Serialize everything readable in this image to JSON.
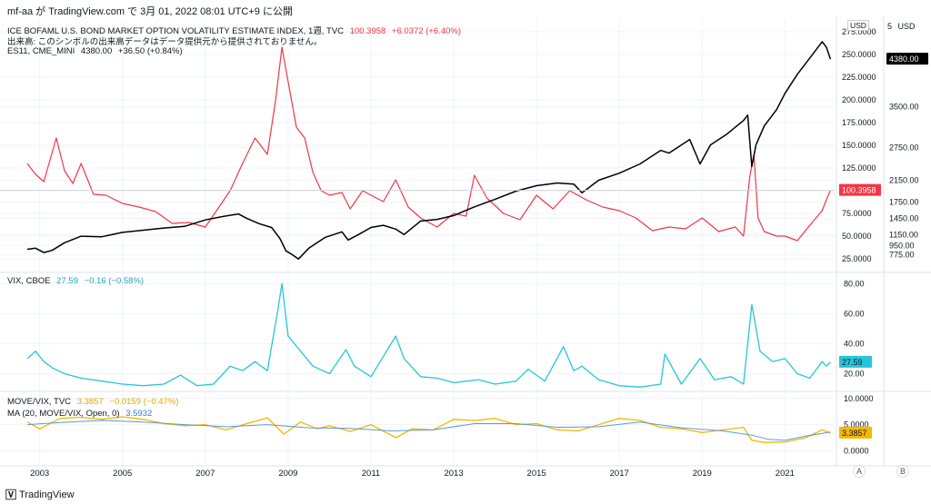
{
  "header": {
    "text": "mf-aa が TradingView.com で 3月 01, 2022 08:01 UTC+9 に公開"
  },
  "legends": {
    "move": {
      "label": "ICE BOFAML U.S. BOND MARKET OPTION VOLATILITY ESTIMATE INDEX, 1週, TVC",
      "value": "100.3958",
      "change": "+6.0372 (+6.40%)"
    },
    "note": "出来高: このシンボルの出来高データはデータ提供元から提供されておりません。",
    "es": {
      "label": "ES11, CME_MINI",
      "value": "4380.00",
      "change": "+36.50 (+0.84%)"
    },
    "vix": {
      "label": "VIX, CBOE",
      "value": "27.59",
      "change": "−0.16 (−0.58%)"
    },
    "ratio": {
      "label": "MOVE/VIX, TVC",
      "value": "3.3857",
      "change": "−0.0159 (−0.47%)"
    },
    "ma": {
      "label": "MA (20, MOVE/VIX, Open, 0)",
      "value": "3.5932"
    }
  },
  "axis_units": {
    "left": "USD",
    "right": "USD",
    "right_num": "5"
  },
  "corner_buttons": {
    "a": "A",
    "b": "B"
  },
  "brand": {
    "name": "TradingView"
  },
  "colors": {
    "move": "#f23645",
    "es": "#000000",
    "vix": "#26c6da",
    "ratio": "#f5b700",
    "ma": "#5b9bd5",
    "grid": "#f0f3fa"
  },
  "chart_data": [
    {
      "type": "line",
      "title": "ICE BOFAML U.S. BOND MARKET OPTION VOLATILITY ESTIMATE INDEX, 1週, TVC",
      "x_ticks": [
        "2003",
        "2005",
        "2007",
        "2009",
        "2011",
        "2013",
        "2015",
        "2017",
        "2019",
        "2021"
      ],
      "x_range": [
        2002.7,
        2022.2
      ],
      "series": [
        {
          "name": "ICE BOFAML U.S. BOND MARKET OPTION VOLATILITY ESTIMATE INDEX",
          "axis": "left",
          "ylim": [
            14,
            282
          ],
          "y_ticks": [
            25,
            50,
            75,
            100,
            125,
            150,
            175,
            200,
            225,
            250,
            275
          ],
          "x": [
            2002.7,
            2002.9,
            2003.1,
            2003.4,
            2003.6,
            2003.8,
            2004.0,
            2004.3,
            2004.6,
            2005.0,
            2005.4,
            2005.8,
            2006.2,
            2006.6,
            2007.0,
            2007.3,
            2007.6,
            2007.9,
            2008.2,
            2008.5,
            2008.7,
            2008.85,
            2009.0,
            2009.2,
            2009.4,
            2009.6,
            2009.8,
            2010.0,
            2010.3,
            2010.5,
            2010.8,
            2011.0,
            2011.3,
            2011.6,
            2011.9,
            2012.2,
            2012.6,
            2013.0,
            2013.3,
            2013.5,
            2013.8,
            2014.2,
            2014.6,
            2015.0,
            2015.4,
            2015.8,
            2016.2,
            2016.6,
            2017.0,
            2017.4,
            2017.8,
            2018.2,
            2018.6,
            2019.0,
            2019.4,
            2019.8,
            2020.0,
            2020.15,
            2020.25,
            2020.35,
            2020.5,
            2020.8,
            2021.0,
            2021.3,
            2021.6,
            2021.9,
            2022.0,
            2022.1
          ],
          "values": [
            130,
            118,
            110,
            158,
            122,
            108,
            130,
            96,
            95,
            86,
            82,
            77,
            64,
            65,
            60,
            80,
            100,
            130,
            158,
            140,
            200,
            258,
            220,
            170,
            158,
            120,
            100,
            95,
            98,
            80,
            100,
            95,
            88,
            112,
            82,
            70,
            60,
            75,
            72,
            117,
            92,
            75,
            68,
            95,
            80,
            100,
            90,
            82,
            78,
            70,
            56,
            60,
            58,
            70,
            55,
            60,
            50,
            115,
            140,
            70,
            55,
            50,
            50,
            45,
            62,
            78,
            90,
            100.3958
          ]
        },
        {
          "name": "ES11, CME_MINI",
          "axis": "right",
          "ylim": [
            520,
            5000
          ],
          "y_ticks": [
            775,
            950,
            1150,
            1450,
            1750,
            2150,
            2750,
            3500,
            4380
          ],
          "x": [
            2002.7,
            2002.9,
            2003.1,
            2003.3,
            2003.6,
            2004.0,
            2004.5,
            2005.0,
            2005.5,
            2006.0,
            2006.5,
            2007.0,
            2007.4,
            2007.8,
            2008.0,
            2008.3,
            2008.6,
            2008.8,
            2008.95,
            2009.1,
            2009.25,
            2009.5,
            2009.9,
            2010.3,
            2010.45,
            2010.7,
            2011.0,
            2011.3,
            2011.6,
            2011.8,
            2012.2,
            2012.6,
            2013.0,
            2013.5,
            2014.0,
            2014.5,
            2015.0,
            2015.5,
            2015.9,
            2016.1,
            2016.5,
            2017.0,
            2017.5,
            2018.0,
            2018.2,
            2018.7,
            2018.95,
            2019.2,
            2019.6,
            2020.0,
            2020.1,
            2020.2,
            2020.3,
            2020.5,
            2020.8,
            2021.0,
            2021.3,
            2021.6,
            2021.9,
            2022.0,
            2022.1
          ],
          "values": [
            880,
            900,
            820,
            860,
            1000,
            1120,
            1110,
            1190,
            1230,
            1270,
            1300,
            1420,
            1480,
            1530,
            1450,
            1350,
            1280,
            1080,
            850,
            780,
            700,
            900,
            1100,
            1200,
            1050,
            1150,
            1280,
            1320,
            1250,
            1150,
            1400,
            1430,
            1500,
            1660,
            1800,
            1950,
            2050,
            2100,
            2080,
            1920,
            2150,
            2280,
            2450,
            2700,
            2650,
            2900,
            2450,
            2800,
            3000,
            3250,
            3350,
            2400,
            2800,
            3150,
            3450,
            3750,
            4100,
            4400,
            4700,
            4600,
            4380
          ]
        }
      ]
    },
    {
      "type": "line",
      "title": "VIX, CBOE",
      "x_range": [
        2002.7,
        2022.2
      ],
      "ylim": [
        10,
        85
      ],
      "y_ticks": [
        20,
        40,
        60,
        80
      ],
      "series": [
        {
          "name": "VIX, CBOE",
          "x": [
            2002.7,
            2002.9,
            2003.1,
            2003.3,
            2003.6,
            2004.0,
            2004.5,
            2005.0,
            2005.5,
            2006.0,
            2006.4,
            2006.8,
            2007.2,
            2007.6,
            2007.9,
            2008.2,
            2008.5,
            2008.75,
            2008.85,
            2009.0,
            2009.3,
            2009.6,
            2010.0,
            2010.4,
            2010.6,
            2011.0,
            2011.6,
            2011.8,
            2012.2,
            2012.6,
            2013.0,
            2013.6,
            2014.0,
            2014.5,
            2014.8,
            2015.2,
            2015.65,
            2015.9,
            2016.1,
            2016.5,
            2017.0,
            2017.5,
            2018.0,
            2018.1,
            2018.5,
            2018.95,
            2019.3,
            2019.7,
            2020.0,
            2020.2,
            2020.4,
            2020.7,
            2021.0,
            2021.3,
            2021.6,
            2021.9,
            2022.0,
            2022.1
          ],
          "values": [
            30,
            35,
            28,
            24,
            20,
            17,
            15,
            13,
            12,
            13,
            19,
            12,
            13,
            25,
            22,
            28,
            22,
            62,
            80,
            45,
            35,
            25,
            20,
            36,
            25,
            18,
            45,
            30,
            18,
            17,
            14,
            16,
            13,
            15,
            23,
            15,
            38,
            22,
            25,
            16,
            12,
            11,
            13,
            33,
            13,
            30,
            16,
            18,
            13,
            66,
            35,
            28,
            30,
            20,
            17,
            28,
            25,
            27.59
          ]
        }
      ]
    },
    {
      "type": "line",
      "title": "MOVE/VIX, TVC",
      "x_range": [
        2002.7,
        2022.2
      ],
      "ylim": [
        -2,
        11
      ],
      "y_ticks": [
        0,
        5,
        10
      ],
      "series": [
        {
          "name": "MOVE/VIX, TVC",
          "x": [
            2002.7,
            2003.0,
            2003.5,
            2004.0,
            2004.5,
            2005.0,
            2005.5,
            2006.0,
            2006.5,
            2007.0,
            2007.5,
            2008.0,
            2008.5,
            2008.9,
            2009.3,
            2009.7,
            2010.0,
            2010.5,
            2011.0,
            2011.6,
            2012.0,
            2012.5,
            2013.0,
            2013.5,
            2014.0,
            2014.5,
            2015.0,
            2015.5,
            2016.0,
            2016.5,
            2017.0,
            2017.5,
            2018.0,
            2018.5,
            2019.0,
            2019.5,
            2020.0,
            2020.2,
            2020.5,
            2021.0,
            2021.5,
            2021.9,
            2022.1
          ],
          "values": [
            5.5,
            4.2,
            6.2,
            6.4,
            6.0,
            6.5,
            6.0,
            5.2,
            4.8,
            5.0,
            4.0,
            5.2,
            6.3,
            3.2,
            5.5,
            4.2,
            4.8,
            3.7,
            5.0,
            2.5,
            4.2,
            4.0,
            6.0,
            5.8,
            6.2,
            5.0,
            5.2,
            4.0,
            3.8,
            5.0,
            6.2,
            5.8,
            4.5,
            4.2,
            3.5,
            4.0,
            4.5,
            2.0,
            1.6,
            1.7,
            2.5,
            4.0,
            3.3857
          ]
        },
        {
          "name": "MA (20, MOVE/VIX, Open, 0)",
          "x": [
            2002.7,
            2003.5,
            2004.5,
            2005.5,
            2006.5,
            2007.5,
            2008.5,
            2009.5,
            2010.5,
            2011.5,
            2012.5,
            2013.5,
            2014.5,
            2015.5,
            2016.5,
            2017.5,
            2018.5,
            2019.5,
            2020.2,
            2020.6,
            2021.0,
            2021.5,
            2022.1
          ],
          "values": [
            5.0,
            5.4,
            5.8,
            5.5,
            5.0,
            4.6,
            5.0,
            4.4,
            4.3,
            3.8,
            4.0,
            5.2,
            5.2,
            4.5,
            4.6,
            5.5,
            4.4,
            3.8,
            3.0,
            2.2,
            2.0,
            2.8,
            3.5932
          ]
        }
      ]
    }
  ]
}
